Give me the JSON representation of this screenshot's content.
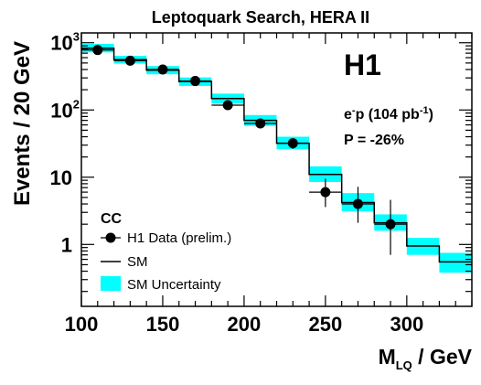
{
  "chart_data": {
    "type": "histogram",
    "title": "Leptoquark Search, HERA II",
    "ylabel": "Events / 20 GeV",
    "xlabel": {
      "main": "M",
      "sub": "LQ",
      "unit": " / GeV"
    },
    "xlim": [
      100,
      340
    ],
    "ylim": [
      0.12,
      1400
    ],
    "y_scale": "log",
    "x_ticks": [
      100,
      150,
      200,
      250,
      300
    ],
    "y_ticks": [
      {
        "value": 1,
        "base": "1",
        "exp": ""
      },
      {
        "value": 10,
        "base": "10",
        "exp": ""
      },
      {
        "value": 100,
        "base": "10",
        "exp": "2"
      },
      {
        "value": 1000,
        "base": "10",
        "exp": "3"
      }
    ],
    "experiment": "H1",
    "beam": {
      "pre": "e",
      "pre_sup": "-",
      "mid": "p (104 pb",
      "sup": "-1",
      "post": ")"
    },
    "polarization": "P = -26%",
    "bins": [
      {
        "x_low": 100,
        "x_high": 120,
        "sm": 830,
        "sm_low": 720,
        "sm_high": 960
      },
      {
        "x_low": 120,
        "x_high": 140,
        "sm": 560,
        "sm_low": 490,
        "sm_high": 640
      },
      {
        "x_low": 140,
        "x_high": 160,
        "sm": 390,
        "sm_low": 340,
        "sm_high": 450
      },
      {
        "x_low": 160,
        "x_high": 180,
        "sm": 265,
        "sm_low": 228,
        "sm_high": 305
      },
      {
        "x_low": 180,
        "x_high": 200,
        "sm": 148,
        "sm_low": 125,
        "sm_high": 175
      },
      {
        "x_low": 200,
        "x_high": 220,
        "sm": 70,
        "sm_low": 58,
        "sm_high": 84
      },
      {
        "x_low": 220,
        "x_high": 240,
        "sm": 32,
        "sm_low": 26,
        "sm_high": 40
      },
      {
        "x_low": 240,
        "x_high": 260,
        "sm": 11,
        "sm_low": 8.5,
        "sm_high": 14.5
      },
      {
        "x_low": 260,
        "x_high": 280,
        "sm": 4.2,
        "sm_low": 3.1,
        "sm_high": 5.8
      },
      {
        "x_low": 280,
        "x_high": 300,
        "sm": 2.1,
        "sm_low": 1.6,
        "sm_high": 2.8
      },
      {
        "x_low": 300,
        "x_high": 320,
        "sm": 0.95,
        "sm_low": 0.7,
        "sm_high": 1.25
      },
      {
        "x_low": 320,
        "x_high": 340,
        "sm": 0.55,
        "sm_low": 0.38,
        "sm_high": 0.75
      }
    ],
    "data_points": [
      {
        "x": 110,
        "y": 780,
        "err_low": 28,
        "err_high": 28
      },
      {
        "x": 130,
        "y": 540,
        "err_low": 23,
        "err_high": 23
      },
      {
        "x": 150,
        "y": 400,
        "err_low": 20,
        "err_high": 20
      },
      {
        "x": 170,
        "y": 270,
        "err_low": 16,
        "err_high": 16
      },
      {
        "x": 190,
        "y": 118,
        "err_low": 11,
        "err_high": 11
      },
      {
        "x": 210,
        "y": 63,
        "err_low": 8,
        "err_high": 8
      },
      {
        "x": 230,
        "y": 32,
        "err_low": 5.6,
        "err_high": 5.6
      },
      {
        "x": 250,
        "y": 6,
        "err_low": 2.4,
        "err_high": 3.5
      },
      {
        "x": 270,
        "y": 4,
        "err_low": 1.9,
        "err_high": 3.2
      },
      {
        "x": 290,
        "y": 2,
        "err_low": 1.3,
        "err_high": 2.6
      }
    ],
    "legend": {
      "title": "CC",
      "entries": [
        "H1 Data (prelim.)",
        "SM",
        "SM Uncertainty"
      ],
      "placement": "bottom-left"
    },
    "colors": {
      "band": "#00ffff",
      "line": "#000000",
      "marker": "#000000"
    }
  }
}
